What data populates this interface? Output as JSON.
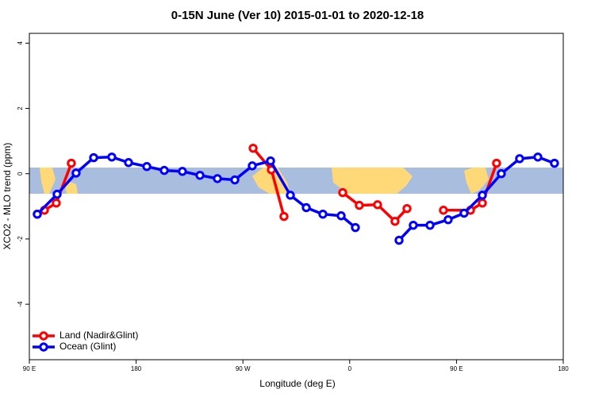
{
  "chart_data": {
    "type": "line",
    "title": "0-15N June (Ver 10)   2015-01-01 to 2020-12-18",
    "xlabel": "Longitude (deg E)",
    "ylabel": "XCO2 - MLO trend (ppm)",
    "xlim": [
      90,
      540
    ],
    "ylim": [
      -5.7,
      4.3
    ],
    "xticks": [
      {
        "value": 90,
        "label": "90 E"
      },
      180,
      {
        "value": 270,
        "label": "90 W"
      },
      {
        "value": 360,
        "label": "0"
      },
      {
        "value": 450,
        "label": "90 E"
      },
      {
        "value": 540,
        "label": "180"
      }
    ],
    "yticks": [
      -4,
      -2,
      0,
      2,
      4
    ],
    "legend": "bottom-left",
    "series": [
      {
        "name": "Land (Nadir&Glint)",
        "color": "#ff0000",
        "x": [
          96.7,
          102.7,
          112.7,
          125.4,
          200,
          278.6,
          294,
          304.6,
          330,
          354.1,
          368.1,
          383.5,
          398.2,
          408.3,
          425,
          439,
          461.8,
          471.8,
          483.8
        ],
        "values": [
          -1.24,
          -1.12,
          -0.9,
          0.32,
          null,
          0.78,
          0.12,
          -1.31,
          null,
          -0.58,
          -0.97,
          -0.95,
          -1.46,
          -1.07,
          null,
          -1.12,
          -1.12,
          -0.9,
          0.32
        ]
      },
      {
        "name": "Ocean (Glint)",
        "color": "#0000ff",
        "x": [
          96.7,
          113.4,
          129.4,
          144.2,
          159.5,
          173.6,
          189,
          203.7,
          219,
          233.8,
          248.5,
          263.2,
          277.9,
          293.3,
          310,
          323.4,
          337.4,
          352.8,
          364.8,
          383,
          401.6,
          413.6,
          427.7,
          443,
          456.4,
          471.8,
          487.8,
          503.2,
          518.6,
          532.6
        ],
        "values": [
          -1.24,
          -0.63,
          0.02,
          0.49,
          0.51,
          0.34,
          0.22,
          0.1,
          0.07,
          -0.05,
          -0.15,
          -0.19,
          0.24,
          0.39,
          -0.66,
          -1.04,
          -1.24,
          -1.29,
          -1.65,
          null,
          -2.04,
          -1.58,
          -1.58,
          -1.41,
          -1.21,
          -0.66,
          0,
          0.46,
          0.51,
          0.32
        ]
      }
    ]
  }
}
